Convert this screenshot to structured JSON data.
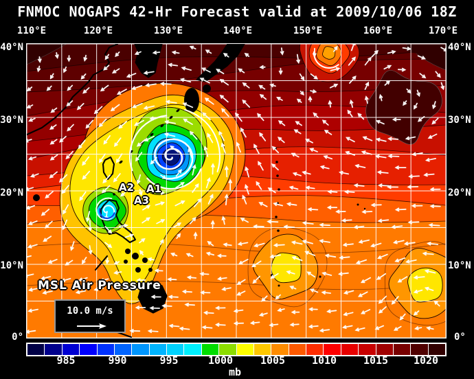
{
  "title": "FNMOC NOGAPS 42-Hr Forecast valid at 2009/10/06 18Z",
  "axes": {
    "top": [
      "110°E",
      "120°E",
      "130°E",
      "140°E",
      "150°E",
      "160°E",
      "170°E"
    ],
    "left": [
      "40°N",
      "30°N",
      "20°N",
      "10°N",
      "0°"
    ],
    "right": [
      "40°N",
      "30°N",
      "20°N",
      "10°N",
      "0°"
    ]
  },
  "map": {
    "field_label": "MSL Air Pressure",
    "wind_legend_label": "10.0 m/s",
    "storm_labels": [
      "A1",
      "A2",
      "A3"
    ]
  },
  "colorbar": {
    "units": "mb",
    "ticks": [
      "985",
      "990",
      "995",
      "1000",
      "1005",
      "1010",
      "1015",
      "1020"
    ],
    "colors": [
      "#000046",
      "#00008C",
      "#0000D2",
      "#0000FF",
      "#0032FF",
      "#0064FF",
      "#0096FF",
      "#00B4FF",
      "#00D2FF",
      "#00F0FF",
      "#00DC00",
      "#8CDC00",
      "#FFFF00",
      "#FFC800",
      "#FF8C00",
      "#FF5A00",
      "#FF2D00",
      "#FF0000",
      "#E60000",
      "#C80000",
      "#A00000",
      "#780000",
      "#500000",
      "#320000"
    ]
  },
  "palette": {
    "page_bg": "#000000",
    "map_border": "#FFFFFF",
    "grid": "#FFFFFF",
    "coast": "#000000",
    "arrow": "#FFFFFF",
    "contour": "#140000",
    "base": "#4A0000",
    "bands": [
      "#5E0000",
      "#770000",
      "#930000",
      "#AD0000",
      "#C81000",
      "#E62000",
      "#FF3C00",
      "#FF5F00",
      "#FF7A00"
    ],
    "dark_blob": "#420000",
    "dark_corner": "#300000",
    "halo_orange": "#FF7800",
    "gold": "#FFC300",
    "yellow": "#FFE600",
    "yellow_green": "#9BDC00",
    "green": "#00D800",
    "cyan": "#00E0FF",
    "light_blue": "#0096FF",
    "blue": "#0041FF",
    "navy": "#001478",
    "low_halo": "#FF9600",
    "low_core": "#FFE600",
    "spot_rings": [
      "#C81400",
      "#FF3C00",
      "#FF7800",
      "#FFA000"
    ],
    "text": "#FFFFFF"
  }
}
